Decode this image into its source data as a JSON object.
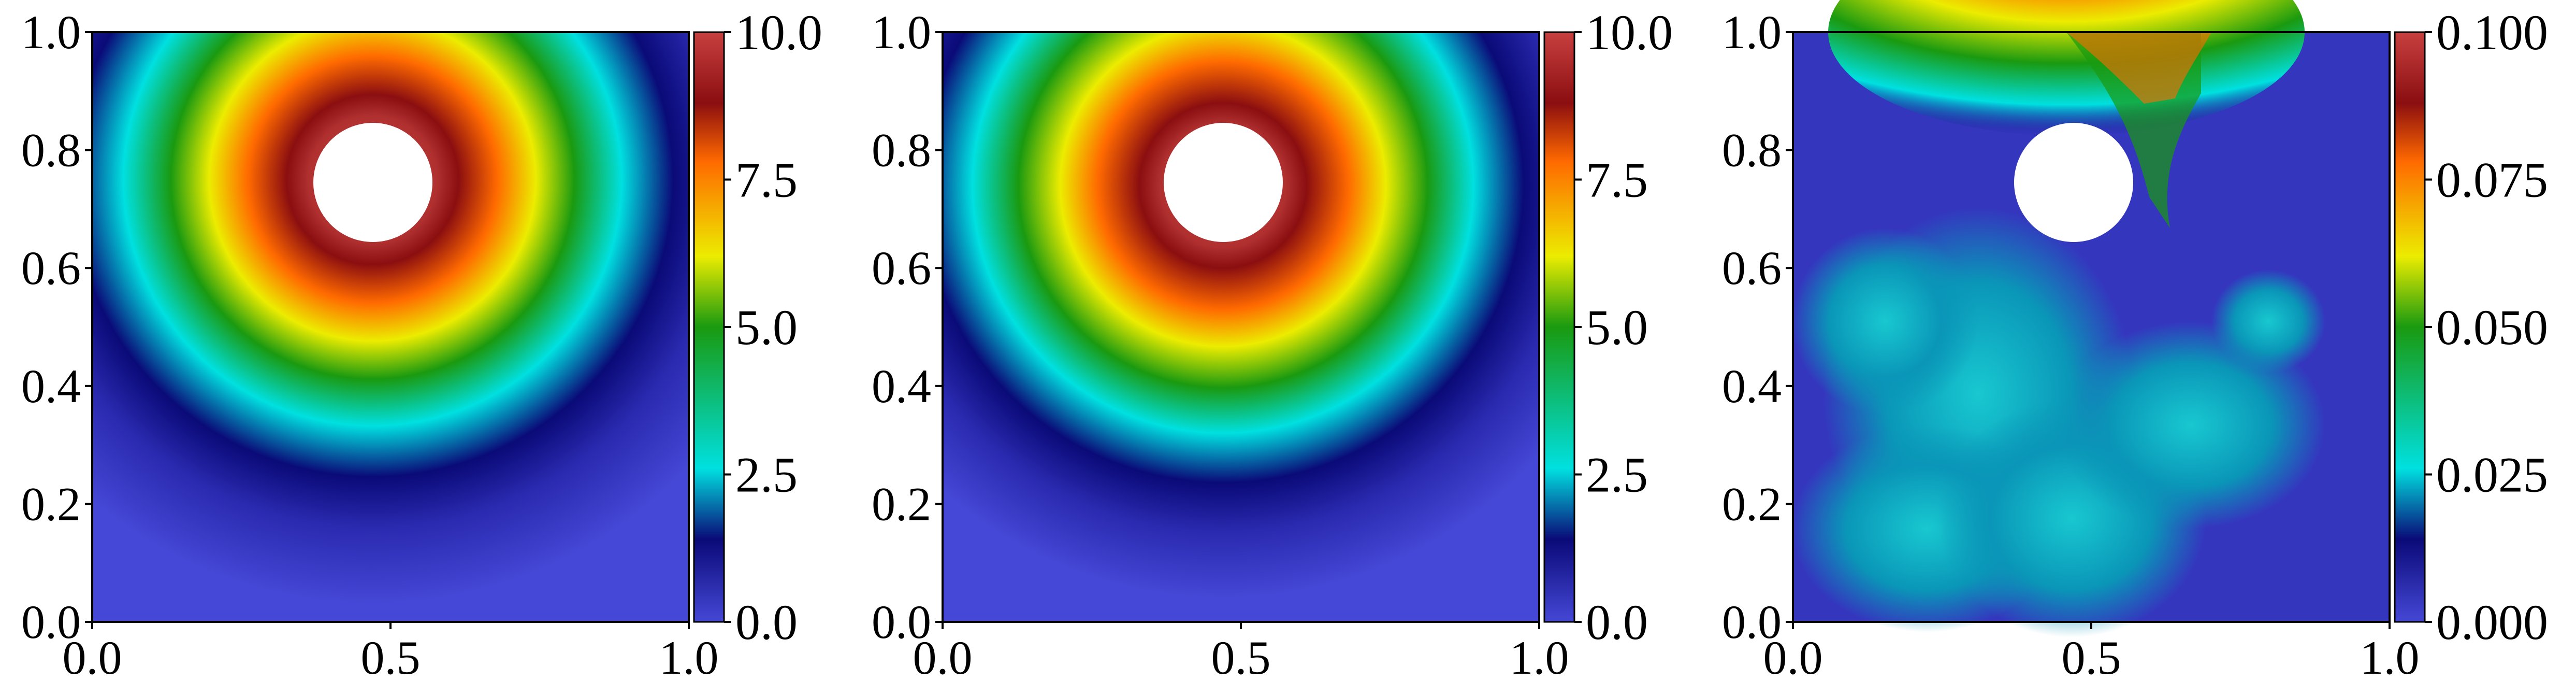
{
  "figure": {
    "colormap": "jet-like (blue-navy-cyan-green-yellow-orange-red-darkred-red)",
    "colors": {
      "low": "#4548d6",
      "navy": "#0a0a78",
      "cyan": "#00e0e0",
      "green": "#1a9a10",
      "yellow": "#ecec00",
      "orange": "#ff6a00",
      "darkred": "#8b0e10",
      "high": "#c84040",
      "hole": "#ffffff"
    }
  },
  "chart_data": [
    {
      "type": "heatmap",
      "title": "",
      "xlabel": "",
      "ylabel": "",
      "xlim": [
        0.0,
        1.0
      ],
      "ylim": [
        0.0,
        1.0
      ],
      "x_ticks": [
        "0.0",
        "0.5",
        "1.0"
      ],
      "y_ticks": [
        "0.0",
        "0.2",
        "0.4",
        "0.6",
        "0.8",
        "1.0"
      ],
      "colorbar": {
        "range": [
          0.0,
          10.0
        ],
        "ticks": [
          "0.0",
          "2.5",
          "5.0",
          "7.5",
          "10.0"
        ]
      },
      "obstacle": {
        "shape": "circle",
        "center": [
          0.47,
          0.75
        ],
        "radius": 0.1
      },
      "field": {
        "peak_value": 10.0,
        "peak_near": [
          0.47,
          0.75
        ],
        "background_value": 0.0
      }
    },
    {
      "type": "heatmap",
      "title": "",
      "xlabel": "",
      "ylabel": "",
      "xlim": [
        0.0,
        1.0
      ],
      "ylim": [
        0.0,
        1.0
      ],
      "x_ticks": [
        "0.0",
        "0.5",
        "1.0"
      ],
      "y_ticks": [
        "0.0",
        "0.2",
        "0.4",
        "0.6",
        "0.8",
        "1.0"
      ],
      "colorbar": {
        "range": [
          0.0,
          10.0
        ],
        "ticks": [
          "0.0",
          "2.5",
          "5.0",
          "7.5",
          "10.0"
        ]
      },
      "obstacle": {
        "shape": "circle",
        "center": [
          0.47,
          0.75
        ],
        "radius": 0.1
      },
      "field": {
        "peak_value": 10.0,
        "peak_near": [
          0.47,
          0.75
        ],
        "background_value": 0.0
      }
    },
    {
      "type": "heatmap",
      "title": "",
      "xlabel": "",
      "ylabel": "",
      "xlim": [
        0.0,
        1.0
      ],
      "ylim": [
        0.0,
        1.0
      ],
      "x_ticks": [
        "0.0",
        "0.5",
        "1.0"
      ],
      "y_ticks": [
        "0.0",
        "0.2",
        "0.4",
        "0.6",
        "0.8",
        "1.0"
      ],
      "colorbar": {
        "range": [
          0.0,
          0.1
        ],
        "ticks": [
          "0.000",
          "0.025",
          "0.050",
          "0.075",
          "0.100"
        ]
      },
      "obstacle": {
        "shape": "circle",
        "center": [
          0.47,
          0.75
        ],
        "radius": 0.1
      },
      "field": {
        "peak_value": 0.1,
        "peak_near": [
          0.55,
          0.98
        ],
        "background_value": 0.02
      }
    }
  ]
}
